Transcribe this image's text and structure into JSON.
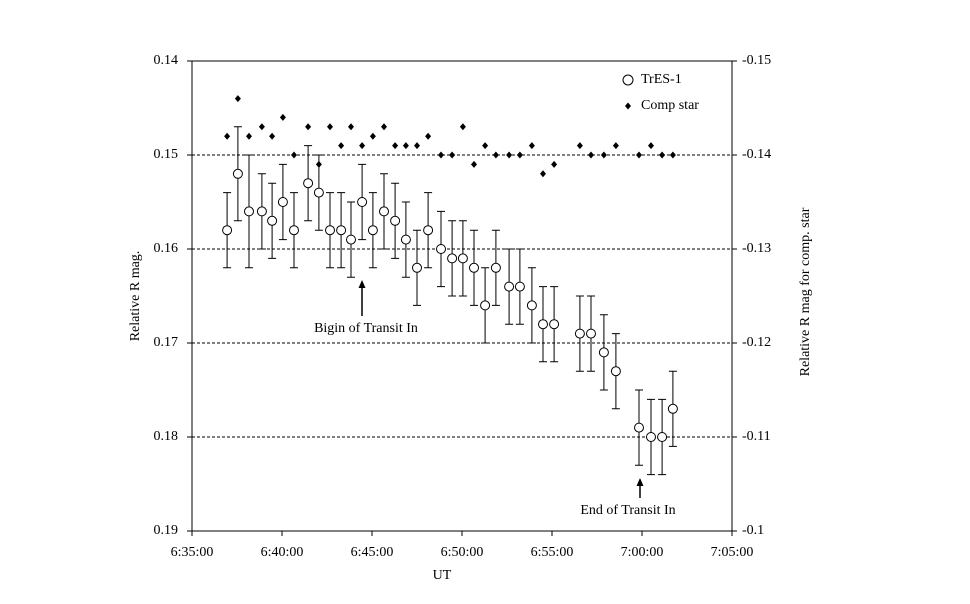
{
  "chart_data": {
    "type": "scatter",
    "xlabel": "UT",
    "ylabel": "Relative R mag.",
    "y2label": "Relative R mag for comp. star",
    "xlim": [
      23700,
      25500
    ],
    "xticks": [
      {
        "value": 23700,
        "label": "6:35:00"
      },
      {
        "value": 24000,
        "label": "6:40:00"
      },
      {
        "value": 24300,
        "label": "6:45:00"
      },
      {
        "value": 24600,
        "label": "6:50:00"
      },
      {
        "value": 24900,
        "label": "6:55:00"
      },
      {
        "value": 25200,
        "label": "7:00:00"
      },
      {
        "value": 25500,
        "label": "7:05:00"
      }
    ],
    "ylim": [
      0.19,
      0.14
    ],
    "yticks": [
      0.14,
      0.15,
      0.16,
      0.17,
      0.18,
      0.19
    ],
    "y2lim": [
      -0.1,
      -0.15
    ],
    "y2ticks": [
      -0.15,
      -0.14,
      -0.13,
      -0.12,
      -0.11,
      -0.1
    ],
    "grid": true,
    "legend": "upper right",
    "x": [
      23817,
      23853,
      23890,
      23933,
      23967,
      24003,
      24040,
      24087,
      24123,
      24160,
      24197,
      24230,
      24267,
      24303,
      24340,
      24377,
      24413,
      24450,
      24487,
      24530,
      24567,
      24603,
      24640,
      24677,
      24713,
      24757,
      24793,
      24833,
      24870,
      24907,
      24993,
      25030,
      25073,
      25113,
      25190,
      25230,
      25267,
      25303
    ],
    "series": [
      {
        "name": "TrES-1",
        "color": "#000000",
        "marker": "open-circle",
        "values": [
          0.158,
          0.152,
          0.156,
          0.156,
          0.157,
          0.155,
          0.158,
          0.153,
          0.154,
          0.158,
          0.158,
          0.159,
          0.155,
          0.158,
          0.156,
          0.157,
          0.159,
          0.162,
          0.158,
          0.16,
          0.161,
          0.161,
          0.162,
          0.166,
          0.162,
          0.164,
          0.164,
          0.166,
          0.168,
          0.168,
          0.169,
          0.169,
          0.171,
          0.173,
          0.179,
          0.18,
          0.18,
          0.177
        ],
        "errors": [
          0.004,
          0.005,
          0.006,
          0.004,
          0.004,
          0.004,
          0.004,
          0.004,
          0.004,
          0.004,
          0.004,
          0.004,
          0.004,
          0.004,
          0.004,
          0.004,
          0.004,
          0.004,
          0.004,
          0.004,
          0.004,
          0.004,
          0.004,
          0.004,
          0.004,
          0.004,
          0.004,
          0.004,
          0.004,
          0.004,
          0.004,
          0.004,
          0.004,
          0.004,
          0.004,
          0.004,
          0.004,
          0.004
        ]
      },
      {
        "name": "Comp star",
        "color": "#000000",
        "marker": "filled-diamond",
        "axis": "y2",
        "values": [
          -0.142,
          -0.146,
          -0.142,
          -0.143,
          -0.142,
          -0.144,
          -0.14,
          -0.143,
          -0.139,
          -0.143,
          -0.141,
          -0.143,
          -0.141,
          -0.142,
          -0.143,
          -0.141,
          -0.141,
          -0.141,
          -0.142,
          -0.14,
          -0.14,
          -0.143,
          -0.139,
          -0.141,
          -0.14,
          -0.14,
          -0.14,
          -0.141,
          -0.138,
          -0.139,
          -0.141,
          -0.14,
          -0.14,
          -0.141,
          -0.14,
          -0.141,
          -0.14,
          -0.14
        ]
      }
    ],
    "annotations": [
      "Bigin of Transit In",
      "End of Transit In"
    ]
  }
}
